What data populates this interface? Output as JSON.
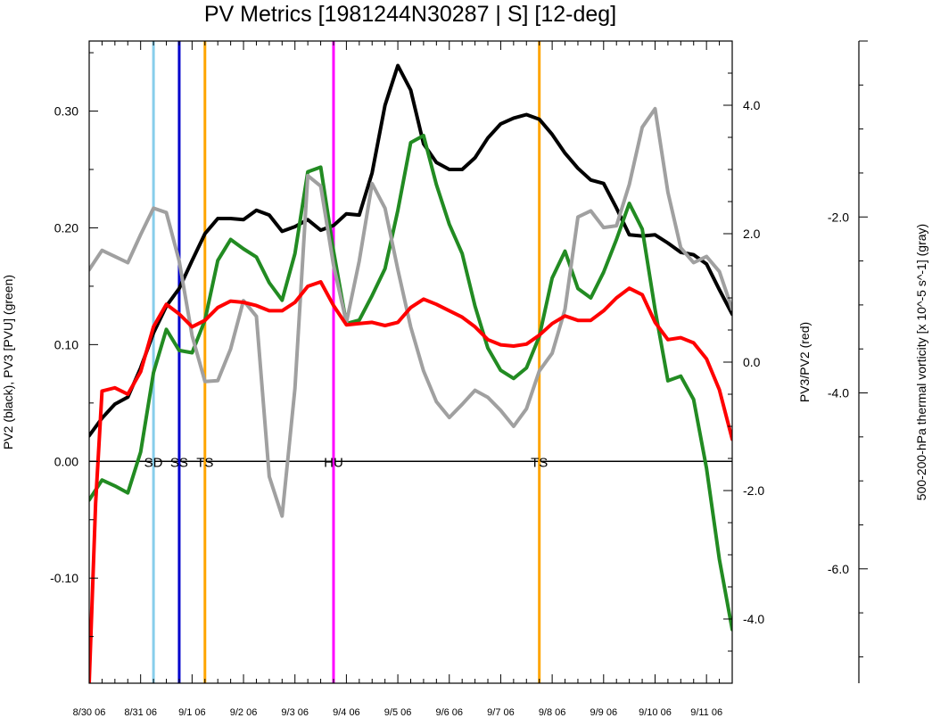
{
  "chart_data": {
    "type": "line",
    "title": "PV Metrics [1981244N30287 | S] [12-deg]",
    "ylabel_left": "PV2 (black), PV3 [PVU] (green)",
    "ylabel_right": "PV3/PV2 (red)",
    "ylabel_far_right": "500-200-hPa thermal vorticity [x 10^-5 s^-1] (gray)",
    "x_days_range": [
      0,
      12.5
    ],
    "ylim_left": [
      -0.19,
      0.36
    ],
    "ylim_right": [
      -5.0,
      5.0
    ],
    "ylim_far_right": [
      -7.3,
      0.0
    ],
    "x_ticks": [
      {
        "x": 0,
        "label": "8/30 06"
      },
      {
        "x": 1,
        "label": "8/31 06"
      },
      {
        "x": 2,
        "label": "9/1 06"
      },
      {
        "x": 3,
        "label": "9/2 06"
      },
      {
        "x": 4,
        "label": "9/3 06"
      },
      {
        "x": 5,
        "label": "9/4 06"
      },
      {
        "x": 6,
        "label": "9/5 06"
      },
      {
        "x": 7,
        "label": "9/6 06"
      },
      {
        "x": 8,
        "label": "9/7 06"
      },
      {
        "x": 9,
        "label": "9/8 06"
      },
      {
        "x": 10,
        "label": "9/9 06"
      },
      {
        "x": 11,
        "label": "9/10 06"
      },
      {
        "x": 12,
        "label": "9/11 06"
      }
    ],
    "left_ticks": [
      {
        "v": 0.3,
        "label": "0.30"
      },
      {
        "v": 0.2,
        "label": "0.20"
      },
      {
        "v": 0.1,
        "label": "0.10"
      },
      {
        "v": 0.0,
        "label": "0.00"
      },
      {
        "v": -0.1,
        "label": "-0.10"
      }
    ],
    "right_ticks": [
      {
        "v": 4.0,
        "label": "4.0"
      },
      {
        "v": 2.0,
        "label": "2.0"
      },
      {
        "v": 0.0,
        "label": "0.0"
      },
      {
        "v": -2.0,
        "label": "-2.0"
      },
      {
        "v": -4.0,
        "label": "-4.0"
      }
    ],
    "far_right_ticks": [
      {
        "v": -2.0,
        "label": "-2.0"
      },
      {
        "v": -4.0,
        "label": "-4.0"
      },
      {
        "v": -6.0,
        "label": "-6.0"
      }
    ],
    "events": [
      {
        "x": 1.25,
        "label": "SD",
        "color": "#87ceeb"
      },
      {
        "x": 1.75,
        "label": "SS",
        "color": "#0000cd"
      },
      {
        "x": 2.25,
        "label": "TS",
        "color": "#ffa500"
      },
      {
        "x": 4.75,
        "label": "HU",
        "color": "#ff00ff"
      },
      {
        "x": 8.75,
        "label": "TS",
        "color": "#ffa500"
      }
    ],
    "series": [
      {
        "key": "black",
        "axis": "left",
        "color": "#000000",
        "x": [
          0,
          0.25,
          0.5,
          0.75,
          1,
          1.25,
          1.5,
          1.75,
          2,
          2.25,
          2.5,
          2.75,
          3,
          3.25,
          3.5,
          3.75,
          4,
          4.25,
          4.5,
          4.75,
          5,
          5.25,
          5.5,
          5.75,
          6,
          6.25,
          6.5,
          6.75,
          7,
          7.25,
          7.5,
          7.75,
          8,
          8.25,
          8.5,
          8.75,
          9,
          9.25,
          9.5,
          9.75,
          10,
          10.25,
          10.5,
          10.75,
          11,
          11.25,
          11.5,
          11.75,
          12,
          12.25,
          12.5
        ],
        "y": [
          0.022,
          0.037,
          0.049,
          0.055,
          0.08,
          0.11,
          0.133,
          0.148,
          0.172,
          0.195,
          0.208,
          0.208,
          0.207,
          0.215,
          0.211,
          0.197,
          0.201,
          0.207,
          0.198,
          0.202,
          0.212,
          0.211,
          0.247,
          0.305,
          0.339,
          0.318,
          0.272,
          0.256,
          0.25,
          0.25,
          0.26,
          0.277,
          0.289,
          0.294,
          0.297,
          0.293,
          0.28,
          0.264,
          0.251,
          0.241,
          0.238,
          0.217,
          0.194,
          0.193,
          0.194,
          0.187,
          0.179,
          0.177,
          0.169,
          0.147,
          0.126
        ]
      },
      {
        "key": "green",
        "axis": "left",
        "color": "#228b22",
        "x": [
          0,
          0.25,
          0.5,
          0.75,
          1,
          1.25,
          1.5,
          1.75,
          2,
          2.25,
          2.5,
          2.75,
          3,
          3.25,
          3.5,
          3.75,
          4,
          4.25,
          4.5,
          4.75,
          5,
          5.25,
          5.5,
          5.75,
          6,
          6.25,
          6.5,
          6.75,
          7,
          7.25,
          7.5,
          7.75,
          8,
          8.25,
          8.5,
          8.75,
          9,
          9.25,
          9.5,
          9.75,
          10,
          10.25,
          10.5,
          10.75,
          11,
          11.25,
          11.5,
          11.75,
          12,
          12.25,
          12.5
        ],
        "y": [
          -0.033,
          -0.016,
          -0.021,
          -0.027,
          0.008,
          0.076,
          0.113,
          0.095,
          0.093,
          0.121,
          0.172,
          0.19,
          0.182,
          0.175,
          0.153,
          0.138,
          0.178,
          0.248,
          0.252,
          0.18,
          0.118,
          0.121,
          0.142,
          0.165,
          0.215,
          0.273,
          0.279,
          0.237,
          0.203,
          0.178,
          0.133,
          0.097,
          0.078,
          0.071,
          0.08,
          0.107,
          0.157,
          0.18,
          0.148,
          0.14,
          0.162,
          0.19,
          0.221,
          0.199,
          0.13,
          0.069,
          0.073,
          0.053,
          -0.006,
          -0.084,
          -0.144
        ]
      },
      {
        "key": "gray",
        "axis": "far_right",
        "color": "#a0a0a0",
        "x": [
          0,
          0.25,
          0.5,
          0.75,
          1,
          1.25,
          1.5,
          1.75,
          2,
          2.25,
          2.5,
          2.75,
          3,
          3.25,
          3.5,
          3.75,
          4,
          4.25,
          4.5,
          4.75,
          5,
          5.25,
          5.5,
          5.75,
          6,
          6.25,
          6.5,
          6.75,
          7,
          7.25,
          7.5,
          7.75,
          8,
          8.25,
          8.5,
          8.75,
          9,
          9.25,
          9.5,
          9.75,
          10,
          10.25,
          10.5,
          10.75,
          11,
          11.25,
          11.5,
          11.75,
          12,
          12.25,
          12.5
        ],
        "y": [
          -2.6,
          -2.38,
          -2.45,
          -2.52,
          -2.2,
          -1.9,
          -1.95,
          -2.5,
          -3.35,
          -3.87,
          -3.86,
          -3.5,
          -2.95,
          -3.13,
          -4.95,
          -5.4,
          -3.95,
          -1.53,
          -1.65,
          -2.55,
          -3.2,
          -2.5,
          -1.62,
          -1.9,
          -2.6,
          -3.25,
          -3.75,
          -4.1,
          -4.28,
          -4.13,
          -3.97,
          -4.05,
          -4.2,
          -4.38,
          -4.18,
          -3.75,
          -3.55,
          -3.05,
          -2.0,
          -1.93,
          -2.12,
          -2.1,
          -1.63,
          -0.98,
          -0.77,
          -1.72,
          -2.35,
          -2.52,
          -2.45,
          -2.62,
          -3.05
        ]
      },
      {
        "key": "red",
        "axis": "right",
        "color": "#ff0000",
        "x": [
          0,
          0.125,
          0.25,
          0.5,
          0.75,
          1,
          1.25,
          1.5,
          1.75,
          2,
          2.25,
          2.5,
          2.75,
          3,
          3.25,
          3.5,
          3.75,
          4,
          4.25,
          4.5,
          4.75,
          5,
          5.25,
          5.5,
          5.75,
          6,
          6.25,
          6.5,
          6.75,
          7,
          7.25,
          7.5,
          7.75,
          8,
          8.25,
          8.5,
          8.75,
          9,
          9.25,
          9.5,
          9.75,
          10,
          10.25,
          10.5,
          10.75,
          11,
          11.25,
          11.5,
          11.75,
          12,
          12.25,
          12.5
        ],
        "y": [
          -5.0,
          -2.2,
          -0.45,
          -0.4,
          -0.5,
          -0.15,
          0.55,
          0.9,
          0.75,
          0.55,
          0.65,
          0.85,
          0.95,
          0.93,
          0.88,
          0.8,
          0.8,
          0.93,
          1.18,
          1.25,
          0.88,
          0.58,
          0.6,
          0.62,
          0.57,
          0.62,
          0.85,
          0.98,
          0.9,
          0.8,
          0.7,
          0.55,
          0.35,
          0.27,
          0.25,
          0.28,
          0.42,
          0.6,
          0.72,
          0.65,
          0.65,
          0.8,
          1.0,
          1.15,
          1.05,
          0.62,
          0.35,
          0.38,
          0.3,
          0.05,
          -0.43,
          -1.2
        ]
      }
    ]
  }
}
